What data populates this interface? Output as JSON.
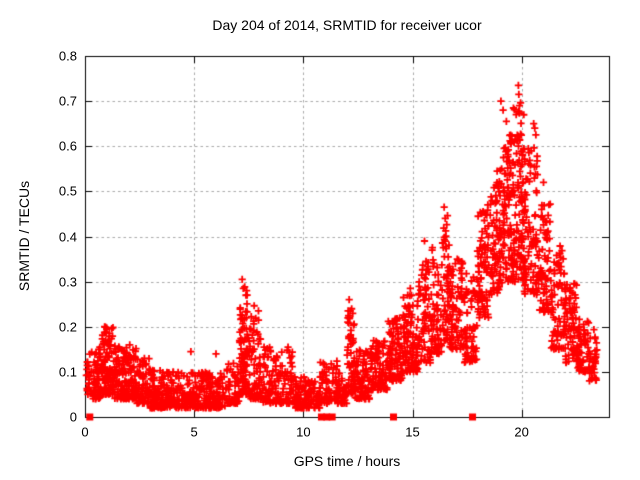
{
  "figure": {
    "background": "#ffffff",
    "border_color": "#000000",
    "text_color": "#000000"
  },
  "chart_data": {
    "type": "scatter",
    "title": "Day 204 of 2014, SRMTID for receiver ucor",
    "xlabel": "GPS time / hours",
    "ylabel": "SRMTID / TECUs",
    "xlim": [
      0,
      24
    ],
    "ylim": [
      0,
      0.8
    ],
    "xticks": {
      "values": [
        0,
        5,
        10,
        15,
        20
      ],
      "labels": [
        "0",
        "5",
        "10",
        "15",
        "20"
      ]
    },
    "yticks": {
      "values": [
        0,
        0.1,
        0.2,
        0.3,
        0.4,
        0.5,
        0.6,
        0.7,
        0.8
      ],
      "labels": [
        "0",
        "0.1",
        "0.2",
        "0.3",
        "0.4",
        "0.5",
        "0.6",
        "0.7",
        "0.8"
      ]
    },
    "grid": {
      "shown": true,
      "color": "#a8a8a8",
      "style": "dashed"
    },
    "seed": 1337,
    "series": [
      {
        "name": "srmtid",
        "marker": "plus",
        "color": "#ff0000",
        "density_bins_format": [
          "t_start_h",
          "t_end_h",
          "count",
          "y_min_TECU",
          "y_max_TECU",
          "skew_toward_min"
        ],
        "density_bins": [
          [
            0.05,
            0.35,
            25,
            0.05,
            0.15,
            1.5
          ],
          [
            0.35,
            0.75,
            60,
            0.04,
            0.17,
            1.5
          ],
          [
            0.75,
            1.35,
            110,
            0.05,
            0.2,
            1.4
          ],
          [
            1.35,
            1.85,
            75,
            0.04,
            0.16,
            1.5
          ],
          [
            1.85,
            2.35,
            75,
            0.04,
            0.16,
            1.7
          ],
          [
            2.35,
            2.95,
            70,
            0.03,
            0.13,
            1.7
          ],
          [
            2.95,
            3.55,
            70,
            0.02,
            0.11,
            1.7
          ],
          [
            3.55,
            4.55,
            105,
            0.02,
            0.1,
            1.6
          ],
          [
            4.55,
            5.55,
            105,
            0.02,
            0.1,
            1.5
          ],
          [
            5.55,
            6.45,
            95,
            0.02,
            0.1,
            1.5
          ],
          [
            6.45,
            7.05,
            55,
            0.03,
            0.12,
            1.8
          ],
          [
            7.05,
            7.5,
            90,
            0.05,
            0.29,
            1.6
          ],
          [
            7.5,
            8.1,
            80,
            0.04,
            0.25,
            1.8
          ],
          [
            8.1,
            8.9,
            75,
            0.03,
            0.16,
            1.6
          ],
          [
            8.9,
            9.55,
            60,
            0.03,
            0.15,
            1.8
          ],
          [
            9.55,
            10.75,
            110,
            0.02,
            0.09,
            1.5
          ],
          [
            10.75,
            11.55,
            65,
            0.03,
            0.13,
            1.6
          ],
          [
            11.55,
            12.0,
            35,
            0.03,
            0.1,
            1.5
          ],
          [
            12.0,
            12.35,
            55,
            0.05,
            0.24,
            1.6
          ],
          [
            12.35,
            13.05,
            85,
            0.04,
            0.15,
            1.5
          ],
          [
            13.05,
            13.85,
            95,
            0.06,
            0.17,
            1.4
          ],
          [
            13.85,
            14.55,
            95,
            0.08,
            0.22,
            1.4
          ],
          [
            14.55,
            15.25,
            105,
            0.1,
            0.27,
            1.4
          ],
          [
            15.25,
            15.85,
            70,
            0.12,
            0.35,
            1.5
          ],
          [
            15.85,
            16.35,
            60,
            0.14,
            0.38,
            1.5
          ],
          [
            16.35,
            16.7,
            55,
            0.17,
            0.45,
            1.4
          ],
          [
            16.7,
            17.35,
            80,
            0.15,
            0.35,
            1.4
          ],
          [
            17.35,
            17.95,
            65,
            0.12,
            0.32,
            1.4
          ],
          [
            17.95,
            18.55,
            85,
            0.22,
            0.46,
            1.3
          ],
          [
            18.55,
            19.15,
            85,
            0.27,
            0.56,
            1.3
          ],
          [
            19.15,
            19.6,
            90,
            0.3,
            0.64,
            1.2
          ],
          [
            19.6,
            20.1,
            110,
            0.3,
            0.7,
            1.2
          ],
          [
            20.1,
            20.75,
            95,
            0.27,
            0.6,
            1.3
          ],
          [
            20.75,
            21.35,
            75,
            0.23,
            0.48,
            1.3
          ],
          [
            21.35,
            21.95,
            70,
            0.15,
            0.38,
            1.4
          ],
          [
            21.95,
            22.55,
            75,
            0.12,
            0.3,
            1.3
          ],
          [
            22.55,
            23.1,
            55,
            0.1,
            0.22,
            1.4
          ],
          [
            23.1,
            23.45,
            35,
            0.08,
            0.2,
            1.3
          ]
        ],
        "peak_points": [
          [
            7.2,
            0.305
          ],
          [
            7.25,
            0.285
          ],
          [
            12.1,
            0.26
          ],
          [
            12.05,
            0.235
          ],
          [
            9.3,
            0.155
          ],
          [
            16.45,
            0.465
          ],
          [
            16.5,
            0.44
          ],
          [
            15.55,
            0.39
          ],
          [
            15.9,
            0.37
          ],
          [
            17.05,
            0.35
          ],
          [
            18.45,
            0.47
          ],
          [
            19.05,
            0.7
          ],
          [
            19.15,
            0.68
          ],
          [
            19.3,
            0.655
          ],
          [
            19.85,
            0.735
          ],
          [
            19.87,
            0.715
          ],
          [
            19.9,
            0.69
          ],
          [
            19.75,
            0.67
          ],
          [
            20.55,
            0.65
          ],
          [
            20.6,
            0.64
          ],
          [
            20.65,
            0.625
          ],
          [
            21.0,
            0.52
          ],
          [
            22.4,
            0.295
          ],
          [
            4.85,
            0.145
          ],
          [
            6.0,
            0.14
          ],
          [
            2.05,
            0.16
          ],
          [
            14.9,
            0.285
          ]
        ]
      },
      {
        "name": "zero-flags",
        "marker": "filled-square",
        "color": "#ff0000",
        "points": [
          [
            0.22,
            0
          ],
          [
            10.83,
            0
          ],
          [
            11.07,
            0
          ],
          [
            11.32,
            0
          ],
          [
            14.13,
            0
          ],
          [
            17.75,
            0
          ]
        ]
      }
    ]
  }
}
